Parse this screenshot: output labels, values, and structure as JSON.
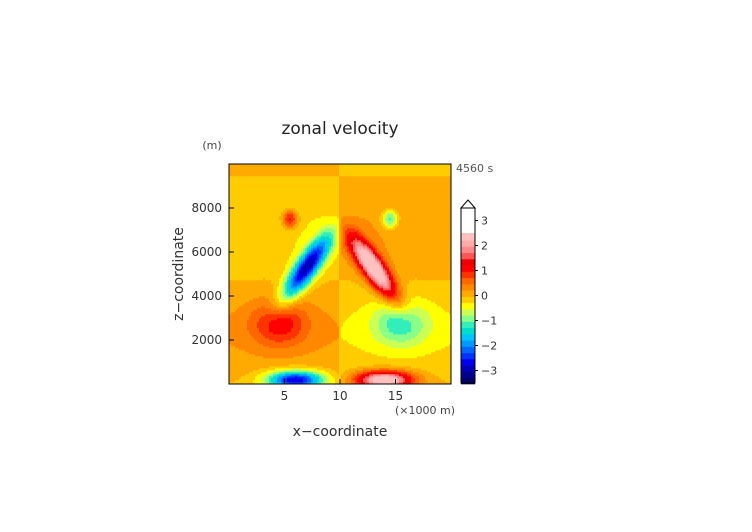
{
  "chart_data": {
    "type": "heatmap",
    "title": "zonal velocity",
    "time_label": "4560 s",
    "xlabel": "x−coordinate",
    "ylabel": "z−coordinate",
    "x_unit": "(×1000 m)",
    "y_unit": "(m)",
    "xlim": [
      0,
      20
    ],
    "ylim": [
      0,
      10000
    ],
    "x_ticks": [
      5,
      10,
      15
    ],
    "x_tick_labels": [
      "5",
      "10",
      "15"
    ],
    "y_ticks": [
      2000,
      4000,
      6000,
      8000
    ],
    "y_tick_labels": [
      "2000",
      "4000",
      "6000",
      "8000"
    ],
    "colorbar": {
      "min": -3.5,
      "max": 3.5,
      "step": 0.25,
      "tick_values": [
        3,
        2,
        1,
        0,
        -1,
        -2,
        -3
      ],
      "tick_labels": [
        "3",
        "2",
        "1",
        "0",
        "−1",
        "−2",
        "−3"
      ]
    },
    "features": [
      {
        "x": 7.0,
        "z": 5300,
        "sx": 3.5,
        "sz": 470,
        "angle_deg": 32,
        "value": -2.9,
        "note": "negative jet along left flank"
      },
      {
        "x": 13.0,
        "z": 5300,
        "sx": 3.5,
        "sz": 470,
        "angle_deg": -32,
        "value": 2.9,
        "note": "positive jet along right flank"
      },
      {
        "x": 4.5,
        "z": 2750,
        "sx": 3.5,
        "sz": 700,
        "angle_deg": 0,
        "value": 1.0,
        "note": "positive lobe lower left"
      },
      {
        "x": 15.5,
        "z": 2750,
        "sx": 3.5,
        "sz": 700,
        "angle_deg": 0,
        "value": -1.0,
        "note": "negative lobe lower right"
      },
      {
        "x": 6.0,
        "z": 200,
        "sx": 3.5,
        "sz": 280,
        "angle_deg": 0,
        "value": -2.8,
        "note": "surface negative"
      },
      {
        "x": 14.0,
        "z": 200,
        "sx": 3.5,
        "sz": 280,
        "angle_deg": 0,
        "value": 2.8,
        "note": "surface positive"
      },
      {
        "x": 5.5,
        "z": 7500,
        "sx": 1.0,
        "sz": 280,
        "angle_deg": 0,
        "value": 1.3,
        "note": "upper positive blob"
      },
      {
        "x": 14.5,
        "z": 7500,
        "sx": 1.0,
        "sz": 280,
        "angle_deg": 0,
        "value": -1.3,
        "note": "upper negative blob"
      }
    ],
    "colors": {
      "levels": [
        "#000066",
        "#00008e",
        "#0000b8",
        "#0000ee",
        "#0033ff",
        "#0066ff",
        "#0099ff",
        "#00c4ff",
        "#00ddcc",
        "#33eebb",
        "#88ff88",
        "#ccff55",
        "#ffff00",
        "#ffcc00",
        "#ffaa00",
        "#ff8800",
        "#ff6600",
        "#ff3300",
        "#ff0000",
        "#ee0000",
        "#ff5555",
        "#ff8888",
        "#ffaaaa",
        "#ffc0c0"
      ],
      "frame": "#000000",
      "title_text": "#222222",
      "label_text": "#444444",
      "time_text": "#555555"
    }
  }
}
